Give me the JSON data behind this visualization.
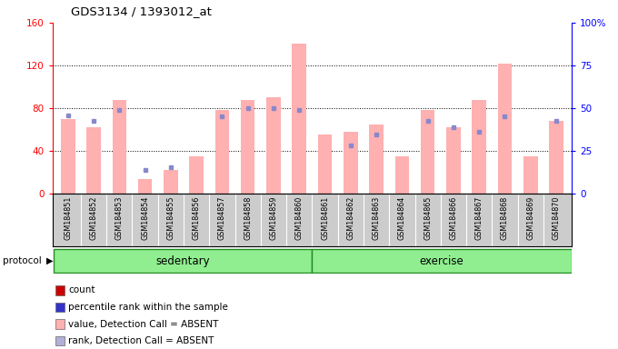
{
  "title": "GDS3134 / 1393012_at",
  "samples": [
    "GSM184851",
    "GSM184852",
    "GSM184853",
    "GSM184854",
    "GSM184855",
    "GSM184856",
    "GSM184857",
    "GSM184858",
    "GSM184859",
    "GSM184860",
    "GSM184861",
    "GSM184862",
    "GSM184863",
    "GSM184864",
    "GSM184865",
    "GSM184866",
    "GSM184867",
    "GSM184868",
    "GSM184869",
    "GSM184870"
  ],
  "pink_values": [
    70,
    62,
    88,
    14,
    22,
    35,
    78,
    88,
    90,
    140,
    55,
    58,
    65,
    35,
    78,
    62,
    88,
    122,
    35,
    68
  ],
  "blue_ranks": [
    73,
    68,
    78,
    22,
    25,
    null,
    72,
    80,
    80,
    78,
    null,
    45,
    55,
    null,
    68,
    62,
    58,
    72,
    null,
    68
  ],
  "pink_color": "#ffb0b0",
  "blue_color": "#8888cc",
  "left_ylim": [
    0,
    160
  ],
  "left_yticks": [
    0,
    40,
    80,
    120,
    160
  ],
  "right_yticks": [
    0,
    25,
    50,
    75,
    100
  ],
  "right_yticklabels": [
    "0",
    "25",
    "50",
    "75",
    "100%"
  ],
  "sedentary_split": 10,
  "green_light": "#90ee90",
  "green_border": "#228b22",
  "legend_colors": [
    "#cc0000",
    "#3333cc",
    "#ffb0b0",
    "#b0b0d8"
  ],
  "legend_labels": [
    "count",
    "percentile rank within the sample",
    "value, Detection Call = ABSENT",
    "rank, Detection Call = ABSENT"
  ]
}
